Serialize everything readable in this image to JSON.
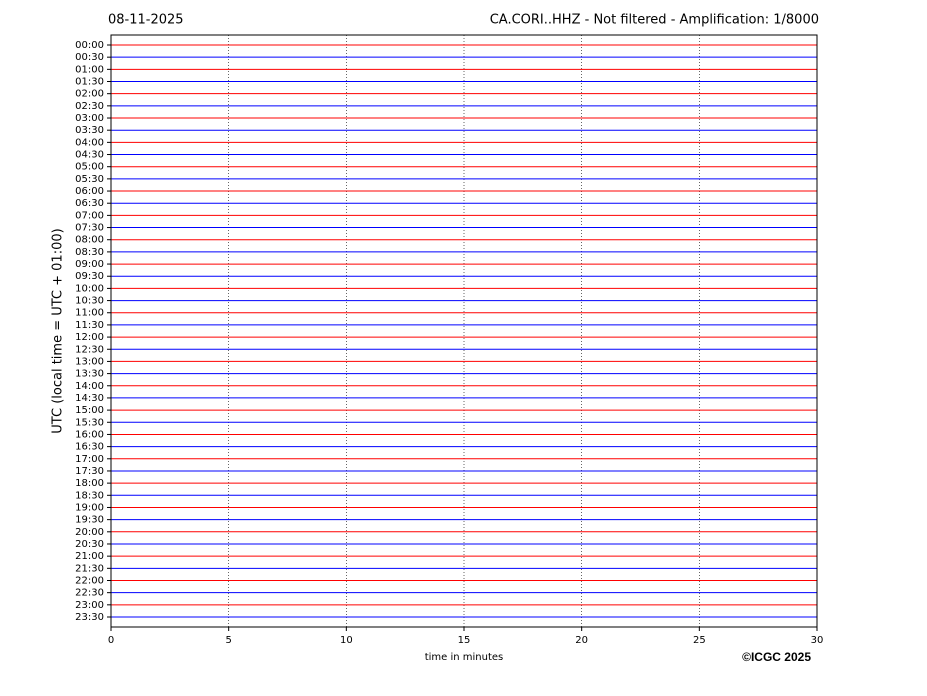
{
  "chart_data": {
    "type": "helicorder",
    "date": "08-11-2025",
    "title": "CA.CORI..HHZ - Not filtered - Amplification: 1/8000",
    "ylabel": "UTC (local time = UTC + 01:00)",
    "xlabel": "time in minutes",
    "copyright": "©ICGC 2025",
    "categories": [
      "00:00",
      "00:30",
      "01:00",
      "01:30",
      "02:00",
      "02:30",
      "03:00",
      "03:30",
      "04:00",
      "04:30",
      "05:00",
      "05:30",
      "06:00",
      "06:30",
      "07:00",
      "07:30",
      "08:00",
      "08:30",
      "09:00",
      "09:30",
      "10:00",
      "10:30",
      "11:00",
      "11:30",
      "12:00",
      "12:30",
      "13:00",
      "13:30",
      "14:00",
      "14:30",
      "15:00",
      "15:30",
      "16:00",
      "16:30",
      "17:00",
      "17:30",
      "18:00",
      "18:30",
      "19:00",
      "19:30",
      "20:00",
      "20:30",
      "21:00",
      "21:30",
      "22:00",
      "22:30",
      "23:00",
      "23:30"
    ],
    "trace_colors": [
      "#ff0000",
      "#0000ff"
    ],
    "xlim": [
      0,
      30
    ],
    "xticks": [
      0,
      5,
      10,
      15,
      20,
      25,
      30
    ],
    "grid": true
  }
}
